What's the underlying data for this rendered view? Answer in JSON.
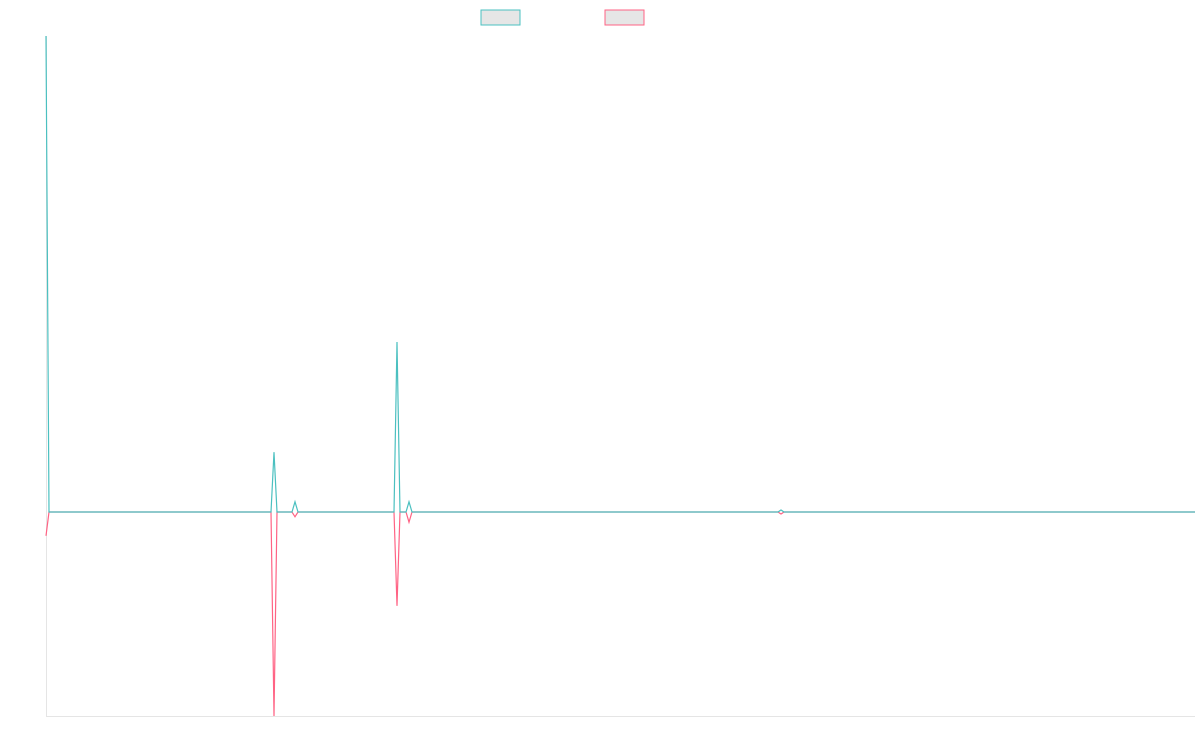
{
  "chart_data": {
    "type": "line",
    "x": [
      0,
      1,
      75,
      76,
      77,
      82,
      83,
      84,
      116,
      117,
      118,
      120,
      121,
      122,
      244,
      245,
      246,
      383
    ],
    "xlim": [
      0,
      383
    ],
    "ylim": [
      -0.3,
      0.7
    ],
    "grid": false,
    "legend": "top",
    "series": [
      {
        "color": "#ff6384",
        "values": [
          -0.035,
          0,
          0,
          -0.3,
          0,
          0,
          -0.007,
          0,
          0,
          -0.138,
          0,
          0,
          -0.015,
          0,
          0,
          -0.003,
          0,
          0
        ]
      },
      {
        "color": "#4bc0c0",
        "values": [
          0.7,
          0,
          0,
          0.088,
          0,
          0,
          0.015,
          0,
          0,
          0.25,
          0,
          0,
          0.015,
          0,
          0,
          0.003,
          0,
          0
        ]
      }
    ]
  }
}
